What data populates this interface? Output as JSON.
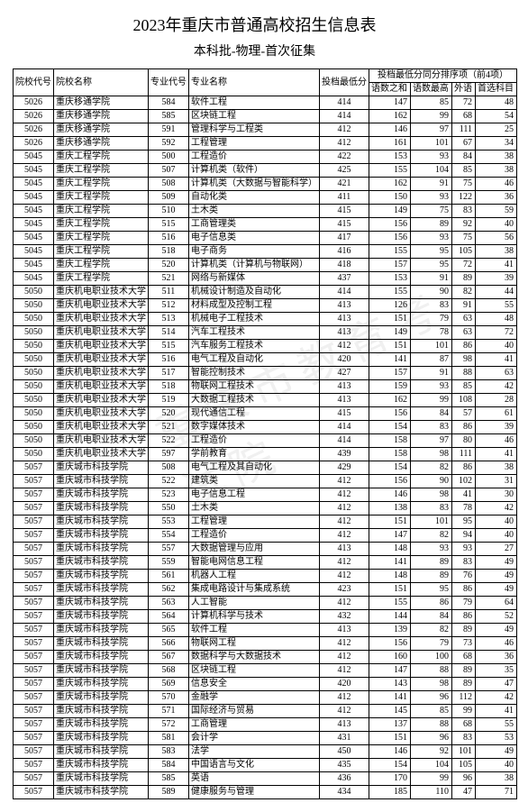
{
  "title": "2023年重庆市普通高校招生信息表",
  "subtitle": "本科批-物理-首次征集",
  "watermark": "重庆市教育考试院",
  "headers": {
    "school_code": "院校代号",
    "school_name": "院校名称",
    "major_code": "专业代号",
    "major_name": "专业名称",
    "min_score": "投档最低分",
    "rank_group": "投档最低分同分排序项（前4项）",
    "s1": "语数之和",
    "s2": "语数最高",
    "s3": "外语",
    "s4": "首选科目"
  },
  "rows": [
    [
      "5026",
      "重庆移通学院",
      "584",
      "软件工程",
      "414",
      "147",
      "85",
      "72",
      "48"
    ],
    [
      "5026",
      "重庆移通学院",
      "585",
      "区块链工程",
      "414",
      "162",
      "99",
      "68",
      "54"
    ],
    [
      "5026",
      "重庆移通学院",
      "591",
      "管理科学与工程类",
      "412",
      "146",
      "97",
      "111",
      "25"
    ],
    [
      "5026",
      "重庆移通学院",
      "592",
      "工程管理",
      "412",
      "161",
      "101",
      "67",
      "34"
    ],
    [
      "5045",
      "重庆工程学院",
      "500",
      "工程造价",
      "422",
      "153",
      "93",
      "84",
      "38"
    ],
    [
      "5045",
      "重庆工程学院",
      "507",
      "计算机类（软件）",
      "425",
      "155",
      "104",
      "85",
      "38"
    ],
    [
      "5045",
      "重庆工程学院",
      "508",
      "计算机类（大数据与智能科学）",
      "421",
      "162",
      "91",
      "75",
      "46"
    ],
    [
      "5045",
      "重庆工程学院",
      "509",
      "自动化类",
      "411",
      "150",
      "93",
      "122",
      "36"
    ],
    [
      "5045",
      "重庆工程学院",
      "510",
      "土木类",
      "415",
      "149",
      "75",
      "83",
      "59"
    ],
    [
      "5045",
      "重庆工程学院",
      "515",
      "工商管理类",
      "415",
      "156",
      "89",
      "92",
      "40"
    ],
    [
      "5045",
      "重庆工程学院",
      "516",
      "电子信息类",
      "417",
      "156",
      "93",
      "75",
      "56"
    ],
    [
      "5045",
      "重庆工程学院",
      "518",
      "电子商务",
      "416",
      "155",
      "95",
      "105",
      "38"
    ],
    [
      "5045",
      "重庆工程学院",
      "520",
      "计算机类（计算机与物联网）",
      "418",
      "157",
      "95",
      "72",
      "41"
    ],
    [
      "5045",
      "重庆工程学院",
      "521",
      "网络与新媒体",
      "437",
      "153",
      "91",
      "89",
      "39"
    ],
    [
      "5050",
      "重庆机电职业技术大学",
      "511",
      "机械设计制造及自动化",
      "414",
      "155",
      "90",
      "82",
      "44"
    ],
    [
      "5050",
      "重庆机电职业技术大学",
      "512",
      "材料成型及控制工程",
      "413",
      "126",
      "83",
      "91",
      "55"
    ],
    [
      "5050",
      "重庆机电职业技术大学",
      "513",
      "机械电子工程技术",
      "413",
      "151",
      "79",
      "63",
      "48"
    ],
    [
      "5050",
      "重庆机电职业技术大学",
      "514",
      "汽车工程技术",
      "413",
      "149",
      "78",
      "63",
      "72"
    ],
    [
      "5050",
      "重庆机电职业技术大学",
      "515",
      "汽车服务工程技术",
      "412",
      "151",
      "101",
      "86",
      "40"
    ],
    [
      "5050",
      "重庆机电职业技术大学",
      "516",
      "电气工程及自动化",
      "420",
      "141",
      "87",
      "98",
      "41"
    ],
    [
      "5050",
      "重庆机电职业技术大学",
      "517",
      "智能控制技术",
      "427",
      "157",
      "91",
      "88",
      "63"
    ],
    [
      "5050",
      "重庆机电职业技术大学",
      "518",
      "物联网工程技术",
      "413",
      "159",
      "93",
      "85",
      "42"
    ],
    [
      "5050",
      "重庆机电职业技术大学",
      "519",
      "大数据工程技术",
      "413",
      "162",
      "99",
      "108",
      "28"
    ],
    [
      "5050",
      "重庆机电职业技术大学",
      "520",
      "现代通信工程",
      "415",
      "156",
      "84",
      "57",
      "61"
    ],
    [
      "5050",
      "重庆机电职业技术大学",
      "521",
      "数字媒体技术",
      "414",
      "154",
      "83",
      "86",
      "39"
    ],
    [
      "5050",
      "重庆机电职业技术大学",
      "522",
      "工程造价",
      "414",
      "158",
      "97",
      "80",
      "46"
    ],
    [
      "5050",
      "重庆机电职业技术大学",
      "597",
      "学前教育",
      "439",
      "158",
      "98",
      "111",
      "41"
    ],
    [
      "5057",
      "重庆城市科技学院",
      "508",
      "电气工程及其自动化",
      "429",
      "154",
      "82",
      "86",
      "38"
    ],
    [
      "5057",
      "重庆城市科技学院",
      "522",
      "建筑类",
      "412",
      "156",
      "90",
      "102",
      "31"
    ],
    [
      "5057",
      "重庆城市科技学院",
      "523",
      "电子信息工程",
      "412",
      "146",
      "98",
      "41",
      "30"
    ],
    [
      "5057",
      "重庆城市科技学院",
      "550",
      "土木类",
      "412",
      "138",
      "83",
      "78",
      "42"
    ],
    [
      "5057",
      "重庆城市科技学院",
      "553",
      "工程管理",
      "412",
      "151",
      "101",
      "95",
      "40"
    ],
    [
      "5057",
      "重庆城市科技学院",
      "554",
      "工程造价",
      "412",
      "147",
      "82",
      "94",
      "40"
    ],
    [
      "5057",
      "重庆城市科技学院",
      "557",
      "大数据管理与应用",
      "413",
      "148",
      "93",
      "93",
      "27"
    ],
    [
      "5057",
      "重庆城市科技学院",
      "559",
      "智能电网信息工程",
      "412",
      "141",
      "89",
      "83",
      "49"
    ],
    [
      "5057",
      "重庆城市科技学院",
      "561",
      "机器人工程",
      "412",
      "148",
      "89",
      "76",
      "49"
    ],
    [
      "5057",
      "重庆城市科技学院",
      "562",
      "集成电路设计与集成系统",
      "423",
      "151",
      "95",
      "86",
      "49"
    ],
    [
      "5057",
      "重庆城市科技学院",
      "563",
      "人工智能",
      "412",
      "155",
      "86",
      "79",
      "64"
    ],
    [
      "5057",
      "重庆城市科技学院",
      "564",
      "计算机科学与技术",
      "432",
      "144",
      "84",
      "86",
      "52"
    ],
    [
      "5057",
      "重庆城市科技学院",
      "565",
      "软件工程",
      "413",
      "139",
      "82",
      "89",
      "49"
    ],
    [
      "5057",
      "重庆城市科技学院",
      "566",
      "物联网工程",
      "412",
      "156",
      "79",
      "73",
      "46"
    ],
    [
      "5057",
      "重庆城市科技学院",
      "567",
      "数据科学与大数据技术",
      "412",
      "160",
      "100",
      "68",
      "36"
    ],
    [
      "5057",
      "重庆城市科技学院",
      "568",
      "区块链工程",
      "412",
      "147",
      "88",
      "89",
      "35"
    ],
    [
      "5057",
      "重庆城市科技学院",
      "569",
      "信息安全",
      "420",
      "143",
      "98",
      "89",
      "47"
    ],
    [
      "5057",
      "重庆城市科技学院",
      "570",
      "金融学",
      "412",
      "141",
      "96",
      "112",
      "42"
    ],
    [
      "5057",
      "重庆城市科技学院",
      "571",
      "国际经济与贸易",
      "412",
      "145",
      "85",
      "99",
      "41"
    ],
    [
      "5057",
      "重庆城市科技学院",
      "572",
      "工商管理",
      "413",
      "137",
      "88",
      "68",
      "55"
    ],
    [
      "5057",
      "重庆城市科技学院",
      "581",
      "会计学",
      "431",
      "151",
      "96",
      "83",
      "53"
    ],
    [
      "5057",
      "重庆城市科技学院",
      "583",
      "法学",
      "450",
      "146",
      "92",
      "101",
      "49"
    ],
    [
      "5057",
      "重庆城市科技学院",
      "584",
      "中国语言与文化",
      "435",
      "154",
      "104",
      "105",
      "40"
    ],
    [
      "5057",
      "重庆城市科技学院",
      "585",
      "英语",
      "436",
      "170",
      "99",
      "96",
      "38"
    ],
    [
      "5057",
      "重庆城市科技学院",
      "589",
      "健康服务与管理",
      "434",
      "185",
      "110",
      "47",
      "71"
    ]
  ]
}
